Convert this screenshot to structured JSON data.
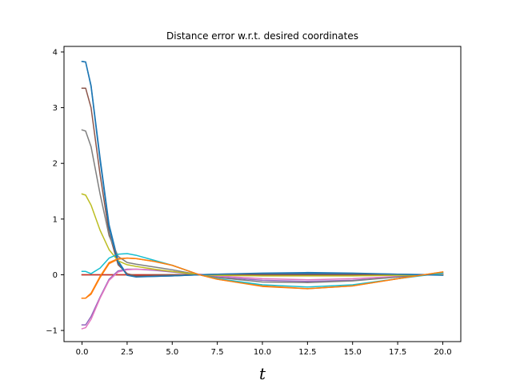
{
  "chart_data": {
    "type": "line",
    "title": "Distance error w.r.t. desired coordinates",
    "xlabel": "t",
    "ylabel": "",
    "xlim": [
      -1.0,
      21.0
    ],
    "ylim": [
      -1.2,
      4.1
    ],
    "xticks": [
      0.0,
      2.5,
      5.0,
      7.5,
      10.0,
      12.5,
      15.0,
      17.5,
      20.0
    ],
    "xtick_labels": [
      "0.0",
      "2.5",
      "5.0",
      "7.5",
      "10.0",
      "12.5",
      "15.0",
      "17.5",
      "20.0"
    ],
    "yticks": [
      -1,
      0,
      1,
      2,
      3,
      4
    ],
    "ytick_labels": [
      "−1",
      "0",
      "1",
      "2",
      "3",
      "4"
    ],
    "grid": false,
    "legend": false,
    "series": [
      {
        "color": "#1f77b4",
        "x": [
          0,
          0.2,
          0.5,
          1,
          1.5,
          2,
          2.5,
          3,
          4,
          5,
          6.5,
          7.5,
          10,
          12.5,
          15,
          17.5,
          20
        ],
        "y": [
          3.83,
          3.82,
          3.4,
          2.1,
          0.9,
          0.25,
          0.0,
          -0.03,
          -0.03,
          -0.02,
          0.0,
          0.01,
          0.02,
          0.02,
          0.02,
          0.01,
          0.0
        ]
      },
      {
        "color": "#ff7f0e",
        "x": [
          0,
          0.2,
          0.5,
          1,
          1.5,
          2,
          2.5,
          3,
          4,
          5,
          6.5,
          7.5,
          10,
          12.5,
          15,
          17.5,
          20
        ],
        "y": [
          -0.42,
          -0.42,
          -0.35,
          -0.05,
          0.2,
          0.28,
          0.3,
          0.29,
          0.24,
          0.17,
          0.0,
          -0.08,
          -0.2,
          -0.25,
          -0.2,
          -0.07,
          0.05
        ]
      },
      {
        "color": "#2ca02c",
        "x": [
          0,
          0.2,
          0.5,
          1,
          1.5,
          2,
          2.5,
          3,
          4,
          5,
          6.5,
          7.5,
          10,
          12.5,
          15,
          17.5,
          20
        ],
        "y": [
          0.0,
          0.0,
          0.0,
          0.0,
          0.0,
          0.0,
          0.0,
          0.0,
          0.0,
          0.0,
          0.0,
          0.0,
          0.0,
          0.0,
          0.0,
          0.0,
          0.0
        ]
      },
      {
        "color": "#d62728",
        "x": [
          0,
          0.2,
          0.5,
          1,
          1.5,
          2,
          2.5,
          3,
          4,
          5,
          6.5,
          7.5,
          10,
          12.5,
          15,
          17.5,
          20
        ],
        "y": [
          0.0,
          0.0,
          0.0,
          0.0,
          0.0,
          0.0,
          0.0,
          0.0,
          0.0,
          0.0,
          0.0,
          0.0,
          0.0,
          0.0,
          0.0,
          0.0,
          0.0
        ]
      },
      {
        "color": "#9467bd",
        "x": [
          0,
          0.2,
          0.5,
          1,
          1.5,
          2,
          2.5,
          3,
          4,
          5,
          6.5,
          7.5,
          10,
          12.5,
          15,
          17.5,
          20
        ],
        "y": [
          -0.9,
          -0.9,
          -0.75,
          -0.4,
          -0.08,
          0.07,
          0.1,
          0.1,
          0.08,
          0.05,
          0.0,
          -0.04,
          -0.1,
          -0.12,
          -0.1,
          -0.04,
          0.02
        ]
      },
      {
        "color": "#8c564b",
        "x": [
          0,
          0.2,
          0.5,
          1,
          1.5,
          2,
          2.5,
          3,
          4,
          5,
          6.5,
          7.5,
          10,
          12.5,
          15,
          17.5,
          20
        ],
        "y": [
          3.35,
          3.35,
          3.0,
          1.8,
          0.75,
          0.18,
          0.02,
          -0.02,
          -0.01,
          0.0,
          0.0,
          0.0,
          0.0,
          0.0,
          0.0,
          0.0,
          0.0
        ]
      },
      {
        "color": "#e377c2",
        "x": [
          0,
          0.2,
          0.5,
          1,
          1.5,
          2,
          2.5,
          3,
          4,
          5,
          6.5,
          7.5,
          10,
          12.5,
          15,
          17.5,
          20
        ],
        "y": [
          -0.97,
          -0.95,
          -0.8,
          -0.42,
          -0.1,
          0.05,
          0.09,
          0.1,
          0.09,
          0.06,
          0.01,
          -0.02,
          -0.07,
          -0.09,
          -0.07,
          -0.03,
          0.01
        ]
      },
      {
        "color": "#7f7f7f",
        "x": [
          0,
          0.2,
          0.5,
          1,
          1.5,
          2,
          2.5,
          3,
          4,
          5,
          6.5,
          7.5,
          10,
          12.5,
          15,
          17.5,
          20
        ],
        "y": [
          2.6,
          2.58,
          2.3,
          1.45,
          0.7,
          0.33,
          0.22,
          0.19,
          0.14,
          0.09,
          0.0,
          -0.05,
          -0.13,
          -0.14,
          -0.11,
          -0.04,
          0.03
        ]
      },
      {
        "color": "#bcbd22",
        "x": [
          0,
          0.2,
          0.5,
          1,
          1.5,
          2,
          2.5,
          3,
          4,
          5,
          6.5,
          7.5,
          10,
          12.5,
          15,
          17.5,
          20
        ],
        "y": [
          1.45,
          1.43,
          1.25,
          0.8,
          0.45,
          0.25,
          0.18,
          0.15,
          0.1,
          0.06,
          0.0,
          -0.01,
          -0.02,
          -0.02,
          -0.02,
          -0.01,
          0.0
        ]
      },
      {
        "color": "#17becf",
        "x": [
          0,
          0.2,
          0.5,
          1,
          1.5,
          2,
          2.5,
          3,
          4,
          5,
          6.5,
          7.5,
          10,
          12.5,
          15,
          17.5,
          20
        ],
        "y": [
          0.06,
          0.06,
          0.02,
          0.12,
          0.3,
          0.37,
          0.38,
          0.35,
          0.26,
          0.17,
          0.0,
          -0.07,
          -0.18,
          -0.22,
          -0.18,
          -0.07,
          0.03
        ]
      },
      {
        "color": "#1f77b4",
        "x": [
          0,
          0.2,
          0.5,
          1,
          1.5,
          2,
          2.5,
          3,
          4,
          5,
          6.5,
          7.5,
          10,
          12.5,
          15,
          17.5,
          20
        ],
        "y": [
          3.83,
          3.82,
          3.38,
          2.05,
          0.85,
          0.22,
          -0.01,
          -0.04,
          -0.03,
          -0.02,
          0.0,
          0.01,
          0.03,
          0.04,
          0.03,
          0.01,
          -0.01
        ]
      },
      {
        "color": "#ff7f0e",
        "x": [
          0,
          0.2,
          0.5,
          1,
          1.5,
          2,
          2.5,
          3,
          4,
          5,
          6.5,
          7.5,
          10,
          12.5,
          15,
          17.5,
          20
        ],
        "y": [
          -0.42,
          -0.42,
          -0.33,
          -0.03,
          0.22,
          0.29,
          0.3,
          0.29,
          0.24,
          0.17,
          0.0,
          -0.08,
          -0.21,
          -0.25,
          -0.2,
          -0.07,
          0.05
        ]
      }
    ]
  }
}
